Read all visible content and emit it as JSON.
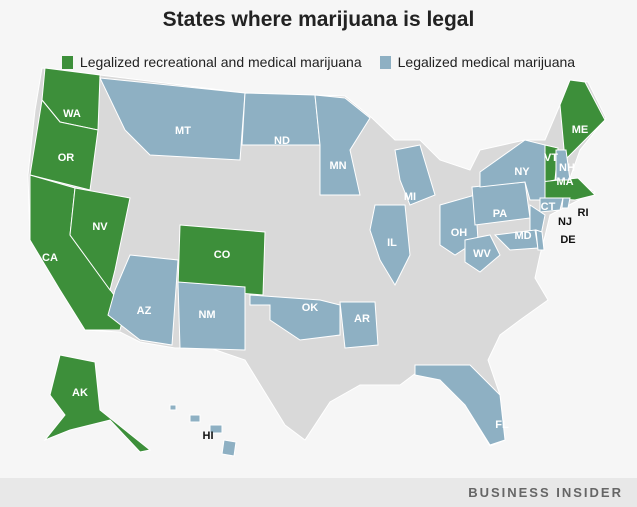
{
  "title": "States where marijuana is legal",
  "legend": [
    {
      "label": "Legalized recreational and medical marijuana",
      "color": "#3d8f3a"
    },
    {
      "label": "Legalized medical marijuana",
      "color": "#8eb0c3"
    }
  ],
  "other_color": "#d9d9d9",
  "recreational_states": [
    "WA",
    "OR",
    "CA",
    "NV",
    "CO",
    "AK",
    "ME",
    "VT",
    "MA"
  ],
  "medical_states": [
    "MT",
    "ND",
    "MN",
    "MI",
    "IL",
    "OH",
    "PA",
    "NY",
    "NH",
    "CT",
    "RI",
    "NJ",
    "MD",
    "DE",
    "WV",
    "AZ",
    "NM",
    "OK",
    "AR",
    "FL",
    "HI"
  ],
  "labels": {
    "WA": "WA",
    "OR": "OR",
    "CA": "CA",
    "NV": "NV",
    "CO": "CO",
    "AK": "AK",
    "ME": "ME",
    "VT": "VT",
    "MA": "MA",
    "MT": "MT",
    "ND": "ND",
    "MN": "MN",
    "MI": "MI",
    "IL": "IL",
    "OH": "OH",
    "PA": "PA",
    "NY": "NY",
    "NH": "NH",
    "CT": "CT",
    "RI": "RI",
    "NJ": "NJ",
    "MD": "MD",
    "DE": "DE",
    "WV": "WV",
    "AZ": "AZ",
    "NM": "NM",
    "OK": "OK",
    "AR": "AR",
    "FL": "FL",
    "HI": "HI"
  },
  "footer": {
    "brand": "BUSINESS INSIDER"
  }
}
